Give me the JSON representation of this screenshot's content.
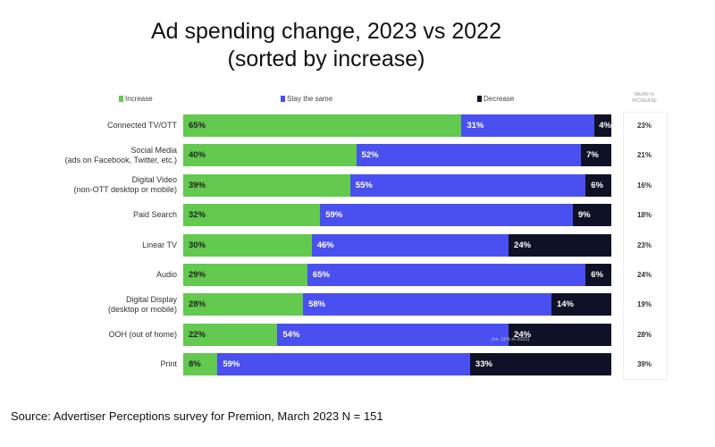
{
  "chart_data": {
    "type": "bar",
    "stacked": true,
    "orientation": "horizontal",
    "title": "Ad spending change, 2023 vs 2022",
    "subtitle": "(sorted by increase)",
    "legend": [
      "Increase",
      "Stay the same",
      "Decrease"
    ],
    "legend_placement": "top",
    "colors": [
      "#63c94f",
      "#4a4ff0",
      "#0f1226"
    ],
    "mean_header": "MEAN % INCREASE",
    "categories": [
      "Connected TV/OTT",
      "Social Media\n(ads on Facebook, Twitter, etc.)",
      "Digital Video\n(non-OTT desktop or mobile)",
      "Paid Search",
      "Linear TV",
      "Audio",
      "Digital Display\n(desktop or mobile)",
      "OOH (out of home)",
      "Print"
    ],
    "series": [
      {
        "name": "Increase",
        "values": [
          65,
          40,
          39,
          32,
          30,
          29,
          28,
          22,
          8
        ]
      },
      {
        "name": "Stay the same",
        "values": [
          31,
          52,
          55,
          59,
          46,
          65,
          58,
          54,
          59
        ]
      },
      {
        "name": "Decrease",
        "values": [
          4,
          7,
          6,
          9,
          24,
          6,
          14,
          24,
          33
        ]
      }
    ],
    "mean_increase": [
      23,
      21,
      16,
      18,
      23,
      24,
      19,
      28,
      39
    ],
    "annotation": "(vs. 11% in 2022)"
  },
  "source": "Source: Advertiser Perceptions survey for Premion, March 2023  N = 151"
}
